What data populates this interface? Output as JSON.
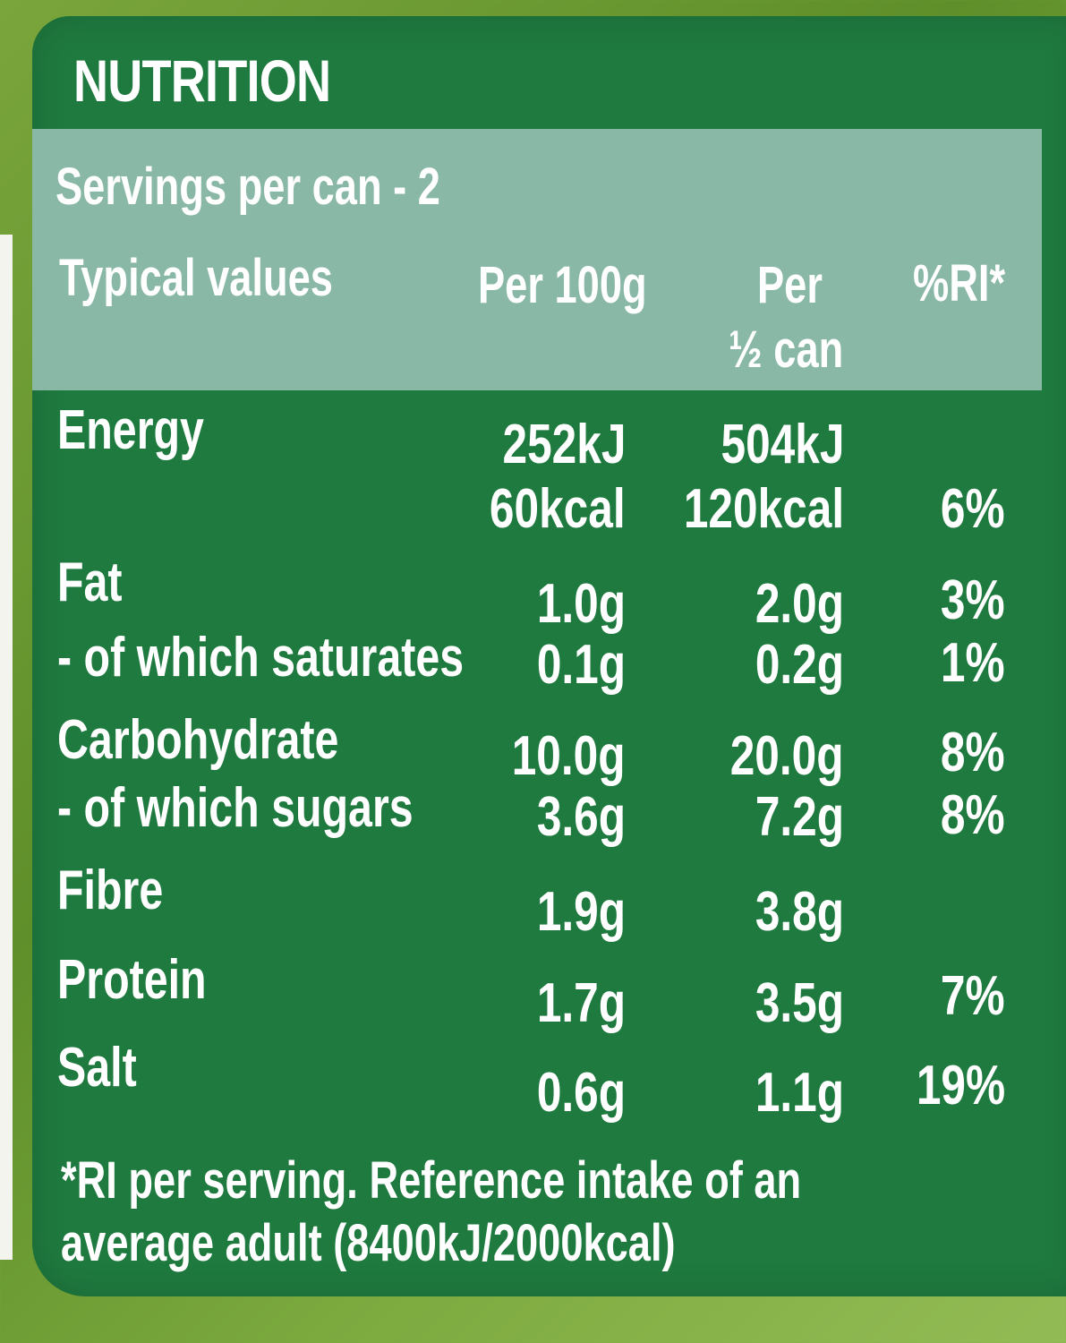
{
  "label": {
    "title": "NUTRITION",
    "servings": "Servings per can - 2",
    "headers": {
      "typical": "Typical values",
      "per100": "Per 100g",
      "per_half_line1": "Per",
      "per_half_line2": "½ can",
      "ri": "%RI*"
    },
    "rows": [
      {
        "label": "Energy",
        "per100": "252kJ",
        "half": "504kJ",
        "ri": ""
      },
      {
        "label": "",
        "per100": "60kcal",
        "half": "120kcal",
        "ri": "6%"
      },
      {
        "label": "Fat",
        "per100": "1.0g",
        "half": "2.0g",
        "ri": "3%"
      },
      {
        "label": "- of which saturates",
        "per100": "0.1g",
        "half": "0.2g",
        "ri": "1%"
      },
      {
        "label": "Carbohydrate",
        "per100": "10.0g",
        "half": "20.0g",
        "ri": "8%"
      },
      {
        "label": "- of which sugars",
        "per100": "3.6g",
        "half": "7.2g",
        "ri": "8%"
      },
      {
        "label": "Fibre",
        "per100": "1.9g",
        "half": "3.8g",
        "ri": ""
      },
      {
        "label": "Protein",
        "per100": "1.7g",
        "half": "3.5g",
        "ri": "7%"
      },
      {
        "label": "Salt",
        "per100": "0.6g",
        "half": "1.1g",
        "ri": "19%"
      }
    ],
    "footnote_line1": "*RI per serving. Reference intake of an",
    "footnote_line2": "average adult (8400kJ/2000kcal)"
  },
  "colors": {
    "panel": "#1f7a3f",
    "header_band": "#8ab8a6",
    "text": "#ffffff",
    "background": "#6f9c34"
  }
}
